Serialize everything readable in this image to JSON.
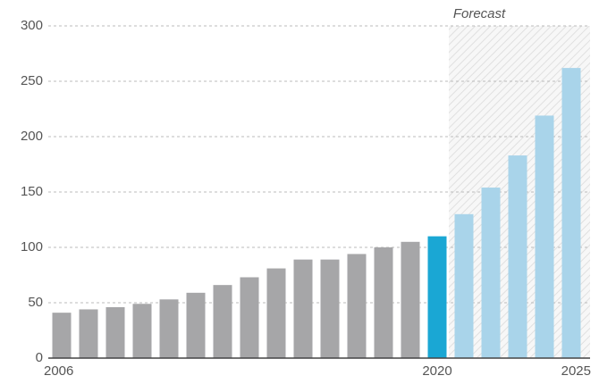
{
  "chart_data": {
    "type": "bar",
    "categories": [
      "2006",
      null,
      null,
      null,
      null,
      null,
      null,
      null,
      null,
      null,
      null,
      null,
      null,
      null,
      "2020",
      null,
      null,
      null,
      null,
      "2025"
    ],
    "values": [
      41,
      44,
      46,
      49,
      53,
      59,
      66,
      73,
      81,
      89,
      89,
      94,
      100,
      105,
      110,
      130,
      154,
      183,
      219,
      262
    ],
    "colors": [
      "#a6a6a8",
      "#a6a6a8",
      "#a6a6a8",
      "#a6a6a8",
      "#a6a6a8",
      "#a6a6a8",
      "#a6a6a8",
      "#a6a6a8",
      "#a6a6a8",
      "#a6a6a8",
      "#a6a6a8",
      "#a6a6a8",
      "#a6a6a8",
      "#a6a6a8",
      "#1aa7d4",
      "#a9d4ea",
      "#a9d4ea",
      "#a9d4ea",
      "#a9d4ea",
      "#a9d4ea"
    ],
    "highlight_color": "#1aa7d4",
    "forecast": {
      "label": "Forecast",
      "color": "#a9d4ea"
    },
    "ylim": [
      0,
      300
    ],
    "yticks": [
      0,
      50,
      100,
      150,
      200,
      250,
      300
    ],
    "grid": true
  }
}
